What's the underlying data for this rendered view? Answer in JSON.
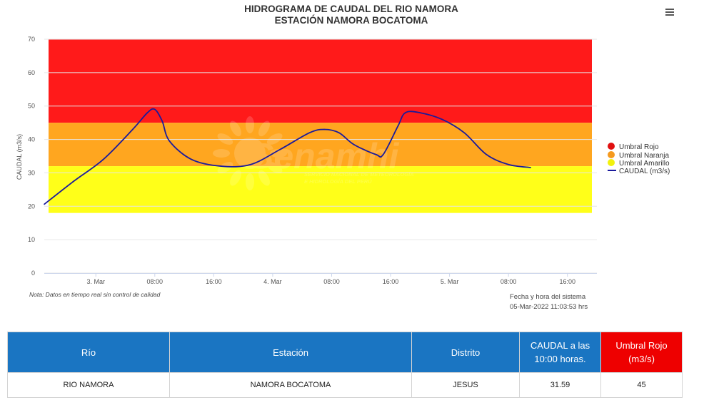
{
  "chart_data": {
    "type": "line",
    "title": [
      "HIDROGRAMA DE CAUDAL DEL RIO NAMORA",
      "ESTACIÓN NAMORA BOCATOMA"
    ],
    "ylabel": "CAUDAL (m3/s)",
    "ylim": [
      0,
      70
    ],
    "yticks": [
      "0",
      "10",
      "20",
      "30",
      "40",
      "50",
      "60",
      "70"
    ],
    "xlim": [
      "2022-03-02T17:00",
      "2022-03-05T20:00"
    ],
    "xticks": [
      {
        "t": "2022-03-03T00:00",
        "label": "3. Mar"
      },
      {
        "t": "2022-03-03T08:00",
        "label": "08:00"
      },
      {
        "t": "2022-03-03T16:00",
        "label": "16:00"
      },
      {
        "t": "2022-03-04T00:00",
        "label": "4. Mar"
      },
      {
        "t": "2022-03-04T08:00",
        "label": "08:00"
      },
      {
        "t": "2022-03-04T16:00",
        "label": "16:00"
      },
      {
        "t": "2022-03-05T00:00",
        "label": "5. Mar"
      },
      {
        "t": "2022-03-05T08:00",
        "label": "08:00"
      },
      {
        "t": "2022-03-05T16:00",
        "label": "16:00"
      }
    ],
    "bands": [
      {
        "name": "Umbral Rojo",
        "from": 45,
        "to": 70,
        "color": "#ff1a1a"
      },
      {
        "name": "Umbral Naranja",
        "from": 32,
        "to": 45,
        "color": "#ffa61f"
      },
      {
        "name": "Umbral Amarillo",
        "from": 18,
        "to": 32,
        "color": "#ffff19"
      }
    ],
    "series": [
      {
        "name": "CAUDAL (m3/s)",
        "color": "#1a1a9c",
        "points": [
          [
            "2022-03-02T17:00",
            20.6
          ],
          [
            "2022-03-02T21:00",
            27.5
          ],
          [
            "2022-03-03T01:00",
            34.0
          ],
          [
            "2022-03-03T05:00",
            43.0
          ],
          [
            "2022-03-03T07:00",
            48.0
          ],
          [
            "2022-03-03T08:00",
            49.0
          ],
          [
            "2022-03-03T09:00",
            45.5
          ],
          [
            "2022-03-03T10:00",
            39.5
          ],
          [
            "2022-03-03T13:00",
            34.0
          ],
          [
            "2022-03-03T17:00",
            32.0
          ],
          [
            "2022-03-03T21:00",
            32.5
          ],
          [
            "2022-03-04T01:00",
            37.0
          ],
          [
            "2022-03-04T05:00",
            42.0
          ],
          [
            "2022-03-04T07:00",
            43.0
          ],
          [
            "2022-03-04T09:00",
            42.0
          ],
          [
            "2022-03-04T11:00",
            38.5
          ],
          [
            "2022-03-04T14:00",
            35.5
          ],
          [
            "2022-03-04T15:00",
            35.5
          ],
          [
            "2022-03-04T17:00",
            44.0
          ],
          [
            "2022-03-04T18:00",
            48.0
          ],
          [
            "2022-03-04T20:00",
            48.0
          ],
          [
            "2022-03-04T23:00",
            46.0
          ],
          [
            "2022-03-05T02:00",
            42.0
          ],
          [
            "2022-03-05T05:00",
            35.5
          ],
          [
            "2022-03-05T08:00",
            32.5
          ],
          [
            "2022-03-05T11:00",
            31.6
          ]
        ]
      }
    ],
    "legend_position": "right",
    "watermark": {
      "brand": "Senamhi",
      "lines": [
        "SERVICIO NACIONAL DE METEOROLOGÍA",
        "E HIDROLOGÍA DEL PERÚ"
      ]
    }
  },
  "legend": {
    "items": [
      {
        "label": "Umbral Rojo",
        "color": "#e01010"
      },
      {
        "label": "Umbral Naranja",
        "color": "#f59a1f"
      },
      {
        "label": "Umbral Amarillo",
        "color": "#f2f20d"
      },
      {
        "label": "CAUDAL (m3/s)",
        "color": "#1a1a9c"
      }
    ]
  },
  "note": "Nota: Datos en tiempo real sin control de calidad",
  "system_time": {
    "label": "Fecha y hora del sistema",
    "value": "05-Mar-2022 11:03:53 hrs"
  },
  "menu_icon": "hamburger-menu-icon",
  "table": {
    "headers": [
      "Río",
      "Estación",
      "Distrito",
      "CAUDAL a las 10:00 horas.",
      "Umbral Rojo (m3/s)"
    ],
    "header_colors": {
      "default": "#1a75c2",
      "umbral": "#ee0000"
    },
    "rows": [
      [
        "RIO NAMORA",
        "NAMORA BOCATOMA",
        "JESUS",
        "31.59",
        "45"
      ]
    ]
  }
}
